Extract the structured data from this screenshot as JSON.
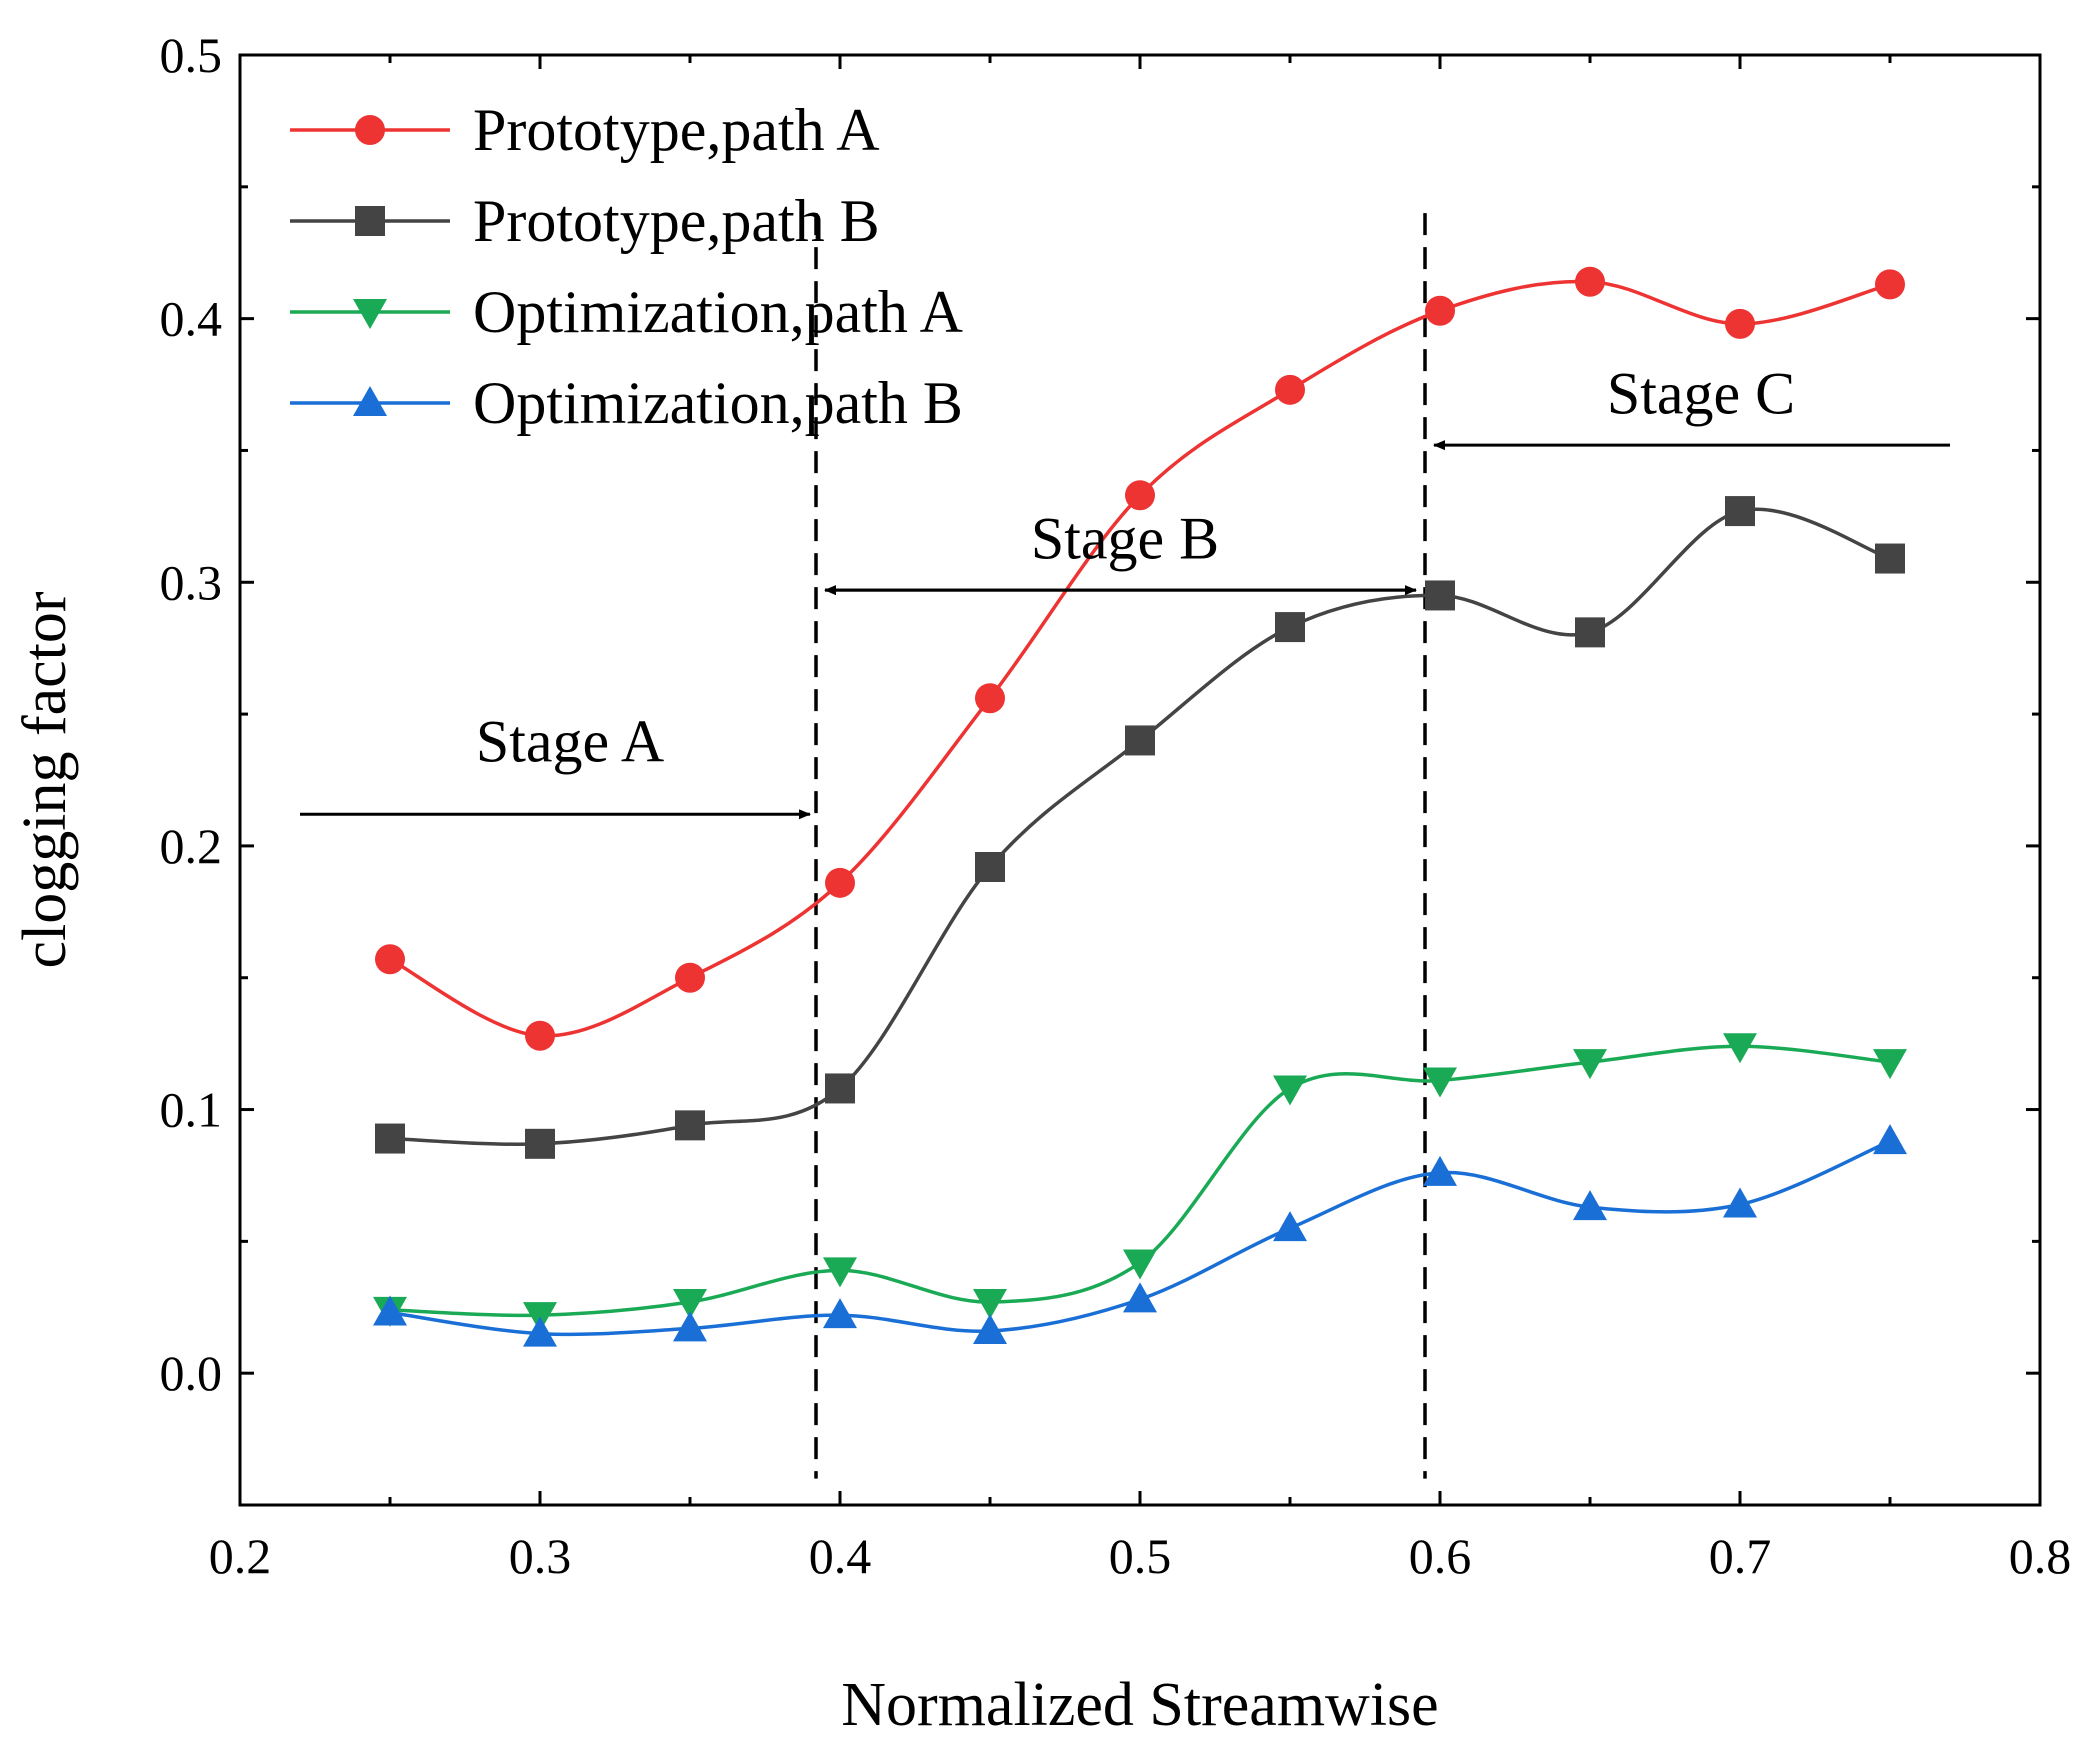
{
  "chart_data": {
    "type": "line",
    "title": "",
    "xlabel": "Normalized Streamwise",
    "ylabel": "clogging factor",
    "xlim": [
      0.2,
      0.8
    ],
    "ylim": [
      -0.05,
      0.5
    ],
    "xticks": [
      0.2,
      0.3,
      0.4,
      0.5,
      0.6,
      0.7,
      0.8
    ],
    "xtick_labels": [
      "0.2",
      "0.3",
      "0.4",
      "0.5",
      "0.6",
      "0.7",
      "0.8"
    ],
    "yticks": [
      0.0,
      0.1,
      0.2,
      0.3,
      0.4,
      0.5
    ],
    "ytick_labels": [
      "0.0",
      "0.1",
      "0.2",
      "0.3",
      "0.4",
      "0.5"
    ],
    "grid": false,
    "legend_position": "top-left",
    "x": [
      0.25,
      0.3,
      0.35,
      0.4,
      0.45,
      0.5,
      0.55,
      0.6,
      0.65,
      0.7,
      0.75
    ],
    "series": [
      {
        "name": "Prototype,path A",
        "color": "#ee3333",
        "marker": "circle",
        "values": [
          0.157,
          0.128,
          0.15,
          0.186,
          0.256,
          0.333,
          0.373,
          0.403,
          0.414,
          0.398,
          0.413
        ]
      },
      {
        "name": "Prototype,path B",
        "color": "#444444",
        "marker": "square",
        "values": [
          0.089,
          0.087,
          0.094,
          0.108,
          0.192,
          0.24,
          0.283,
          0.295,
          0.281,
          0.327,
          0.309
        ]
      },
      {
        "name": "Optimization,path A",
        "color": "#1aaa55",
        "marker": "triangle-down",
        "values": [
          0.024,
          0.022,
          0.027,
          0.039,
          0.027,
          0.042,
          0.108,
          0.111,
          0.118,
          0.124,
          0.118
        ]
      },
      {
        "name": "Optimization,path B",
        "color": "#1a6fd6",
        "marker": "triangle-up",
        "values": [
          0.023,
          0.015,
          0.017,
          0.022,
          0.016,
          0.028,
          0.055,
          0.076,
          0.063,
          0.064,
          0.088
        ]
      }
    ],
    "stage_boundaries": [
      0.392,
      0.595
    ],
    "annotations": [
      {
        "text": "Stage A",
        "x": 0.31,
        "y": 0.232,
        "arrow_from": [
          0.22,
          0.212
        ],
        "arrow_to": [
          0.39,
          0.212
        ]
      },
      {
        "text": "Stage B",
        "x": 0.495,
        "y": 0.309,
        "arrow_from": [
          0.395,
          0.297
        ],
        "arrow_to": [
          0.592,
          0.297
        ]
      },
      {
        "text": "Stage C",
        "x": 0.687,
        "y": 0.364,
        "arrow_from": [
          0.77,
          0.352
        ],
        "arrow_to": [
          0.598,
          0.352
        ]
      }
    ]
  }
}
